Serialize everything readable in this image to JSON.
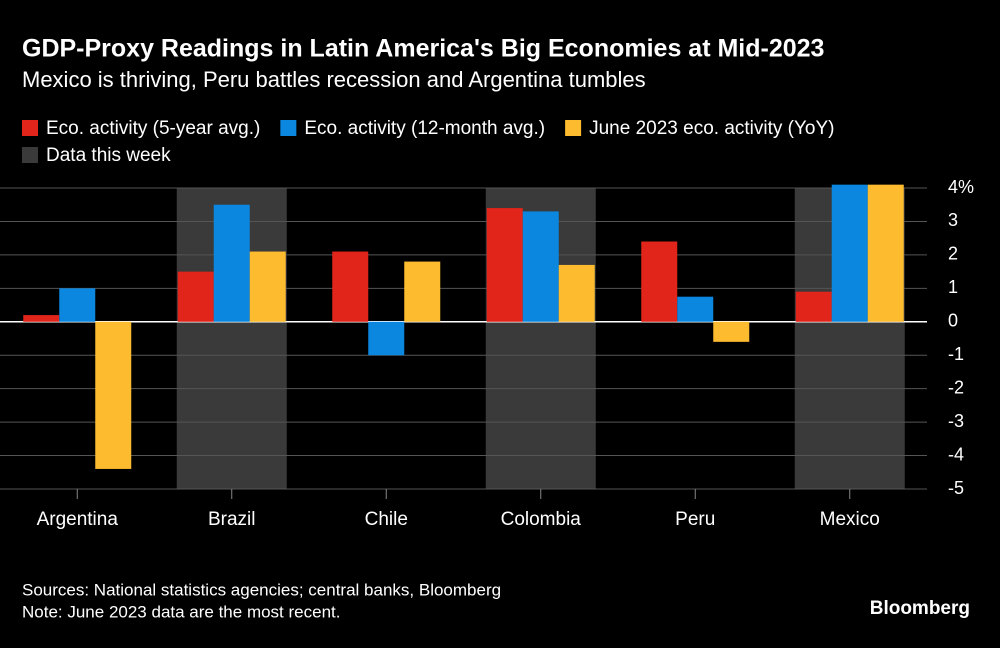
{
  "chart_data": {
    "type": "bar",
    "title": "GDP-Proxy Readings in Latin America's Big Economies at Mid-2023",
    "subtitle": "Mexico is thriving, Peru battles recession and Argentina tumbles",
    "categories": [
      "Argentina",
      "Brazil",
      "Chile",
      "Colombia",
      "Peru",
      "Mexico"
    ],
    "series": [
      {
        "name": "Eco. activity (5-year avg.)",
        "color": "#e1251b",
        "values": [
          0.2,
          1.5,
          2.1,
          3.4,
          2.4,
          0.9
        ]
      },
      {
        "name": "Eco. activity (12-month avg.)",
        "color": "#0b87e0",
        "values": [
          1.0,
          3.5,
          -1.0,
          3.3,
          0.75,
          4.1
        ]
      },
      {
        "name": "June 2023 eco. activity (YoY)",
        "color": "#fdbb30",
        "values": [
          -4.4,
          2.1,
          1.8,
          1.7,
          -0.6,
          4.1
        ]
      }
    ],
    "highlight": {
      "name": "Data this week",
      "color": "#3a3a3a",
      "categories": [
        "Brazil",
        "Colombia",
        "Mexico"
      ]
    },
    "ylim": [
      -5,
      4
    ],
    "yticks": [
      -5,
      -4,
      -3,
      -2,
      -1,
      0,
      1,
      2,
      3,
      {
        "value": 4,
        "label": "4%"
      }
    ],
    "grid": true,
    "source": "Sources: National statistics agencies; central banks, Bloomberg",
    "note": "Note: June 2023 data are the most recent.",
    "brand": "Bloomberg"
  }
}
